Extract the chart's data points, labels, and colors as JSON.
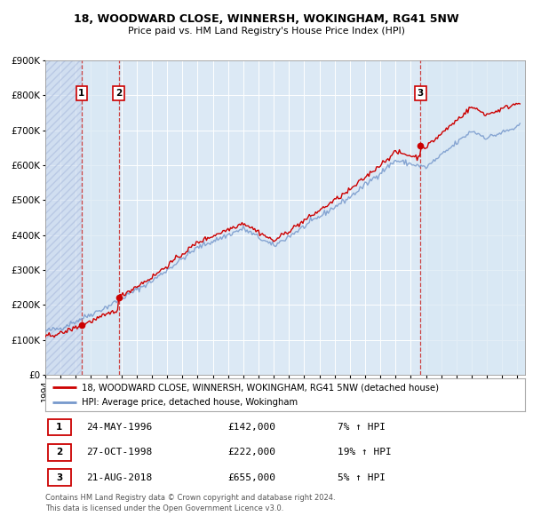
{
  "title": "18, WOODWARD CLOSE, WINNERSH, WOKINGHAM, RG41 5NW",
  "subtitle": "Price paid vs. HM Land Registry's House Price Index (HPI)",
  "property_label": "18, WOODWARD CLOSE, WINNERSH, WOKINGHAM, RG41 5NW (detached house)",
  "hpi_label": "HPI: Average price, detached house, Wokingham",
  "transactions": [
    {
      "num": 1,
      "date": "24-MAY-1996",
      "price": 142000,
      "year": 1996.38,
      "hpi_pct": "7% ↑ HPI"
    },
    {
      "num": 2,
      "date": "27-OCT-1998",
      "price": 222000,
      "year": 1998.82,
      "hpi_pct": "19% ↑ HPI"
    },
    {
      "num": 3,
      "date": "21-AUG-2018",
      "price": 655000,
      "year": 2018.64,
      "hpi_pct": "5% ↑ HPI"
    }
  ],
  "footer": "Contains HM Land Registry data © Crown copyright and database right 2024.\nThis data is licensed under the Open Government Licence v3.0.",
  "bg_color": "#ffffff",
  "plot_bg_color": "#dce9f5",
  "grid_color": "#ffffff",
  "property_line_color": "#cc0000",
  "hpi_line_color": "#7799cc",
  "transaction_dot_color": "#cc0000",
  "transaction_vline_color": "#cc4444",
  "ylim": [
    0,
    900000
  ],
  "yticks": [
    0,
    100000,
    200000,
    300000,
    400000,
    500000,
    600000,
    700000,
    800000,
    900000
  ],
  "xlim_start": 1994.0,
  "xlim_end": 2025.5,
  "xticks": [
    1994,
    1995,
    1996,
    1997,
    1998,
    1999,
    2000,
    2001,
    2002,
    2003,
    2004,
    2005,
    2006,
    2007,
    2008,
    2009,
    2010,
    2011,
    2012,
    2013,
    2014,
    2015,
    2016,
    2017,
    2018,
    2019,
    2020,
    2021,
    2022,
    2023,
    2024,
    2025
  ]
}
